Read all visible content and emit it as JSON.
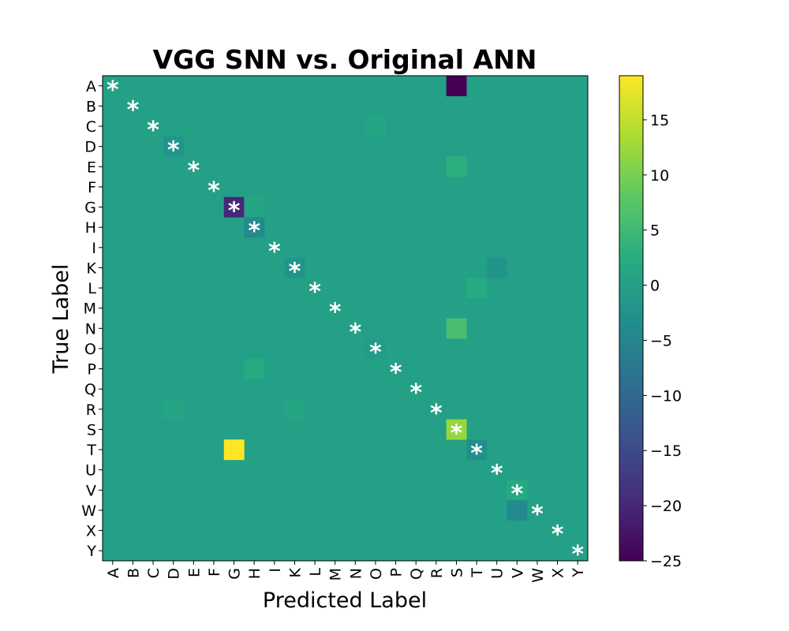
{
  "chart_data": {
    "type": "heatmap",
    "title": "VGG SNN vs. Original ANN",
    "xlabel": "Predicted Label",
    "ylabel": "True Label",
    "x_categories": [
      "A",
      "B",
      "C",
      "D",
      "E",
      "F",
      "G",
      "H",
      "I",
      "K",
      "L",
      "M",
      "N",
      "O",
      "P",
      "Q",
      "R",
      "S",
      "T",
      "U",
      "V",
      "W",
      "X",
      "Y"
    ],
    "y_categories": [
      "A",
      "B",
      "C",
      "D",
      "E",
      "F",
      "G",
      "H",
      "I",
      "K",
      "L",
      "M",
      "N",
      "O",
      "P",
      "Q",
      "R",
      "S",
      "T",
      "U",
      "V",
      "W",
      "X",
      "Y"
    ],
    "default_value": 0,
    "cells": [
      {
        "row": "A",
        "col": "S",
        "value": -25
      },
      {
        "row": "C",
        "col": "O",
        "value": 1
      },
      {
        "row": "D",
        "col": "D",
        "value": -2
      },
      {
        "row": "E",
        "col": "S",
        "value": 3
      },
      {
        "row": "G",
        "col": "G",
        "value": -20
      },
      {
        "row": "G",
        "col": "H",
        "value": 1
      },
      {
        "row": "H",
        "col": "H",
        "value": -4
      },
      {
        "row": "K",
        "col": "K",
        "value": -2
      },
      {
        "row": "K",
        "col": "U",
        "value": -2
      },
      {
        "row": "L",
        "col": "T",
        "value": 2
      },
      {
        "row": "N",
        "col": "S",
        "value": 6
      },
      {
        "row": "O",
        "col": "O",
        "value": -1
      },
      {
        "row": "P",
        "col": "H",
        "value": 2
      },
      {
        "row": "R",
        "col": "D",
        "value": 1
      },
      {
        "row": "R",
        "col": "K",
        "value": 1
      },
      {
        "row": "S",
        "col": "S",
        "value": 12
      },
      {
        "row": "T",
        "col": "G",
        "value": 19
      },
      {
        "row": "T",
        "col": "T",
        "value": -3
      },
      {
        "row": "V",
        "col": "V",
        "value": 2
      },
      {
        "row": "W",
        "col": "V",
        "value": -4
      }
    ],
    "diagonal_marker": "*",
    "colormap": "viridis",
    "colorbar": {
      "min": -25,
      "max": 19,
      "ticks": [
        15,
        10,
        5,
        0,
        -5,
        -10,
        -15,
        -20,
        -25
      ],
      "tick_labels": [
        "15",
        "10",
        "5",
        "0",
        "−5",
        "−10",
        "−15",
        "−20",
        "−25"
      ]
    },
    "grid": false
  }
}
